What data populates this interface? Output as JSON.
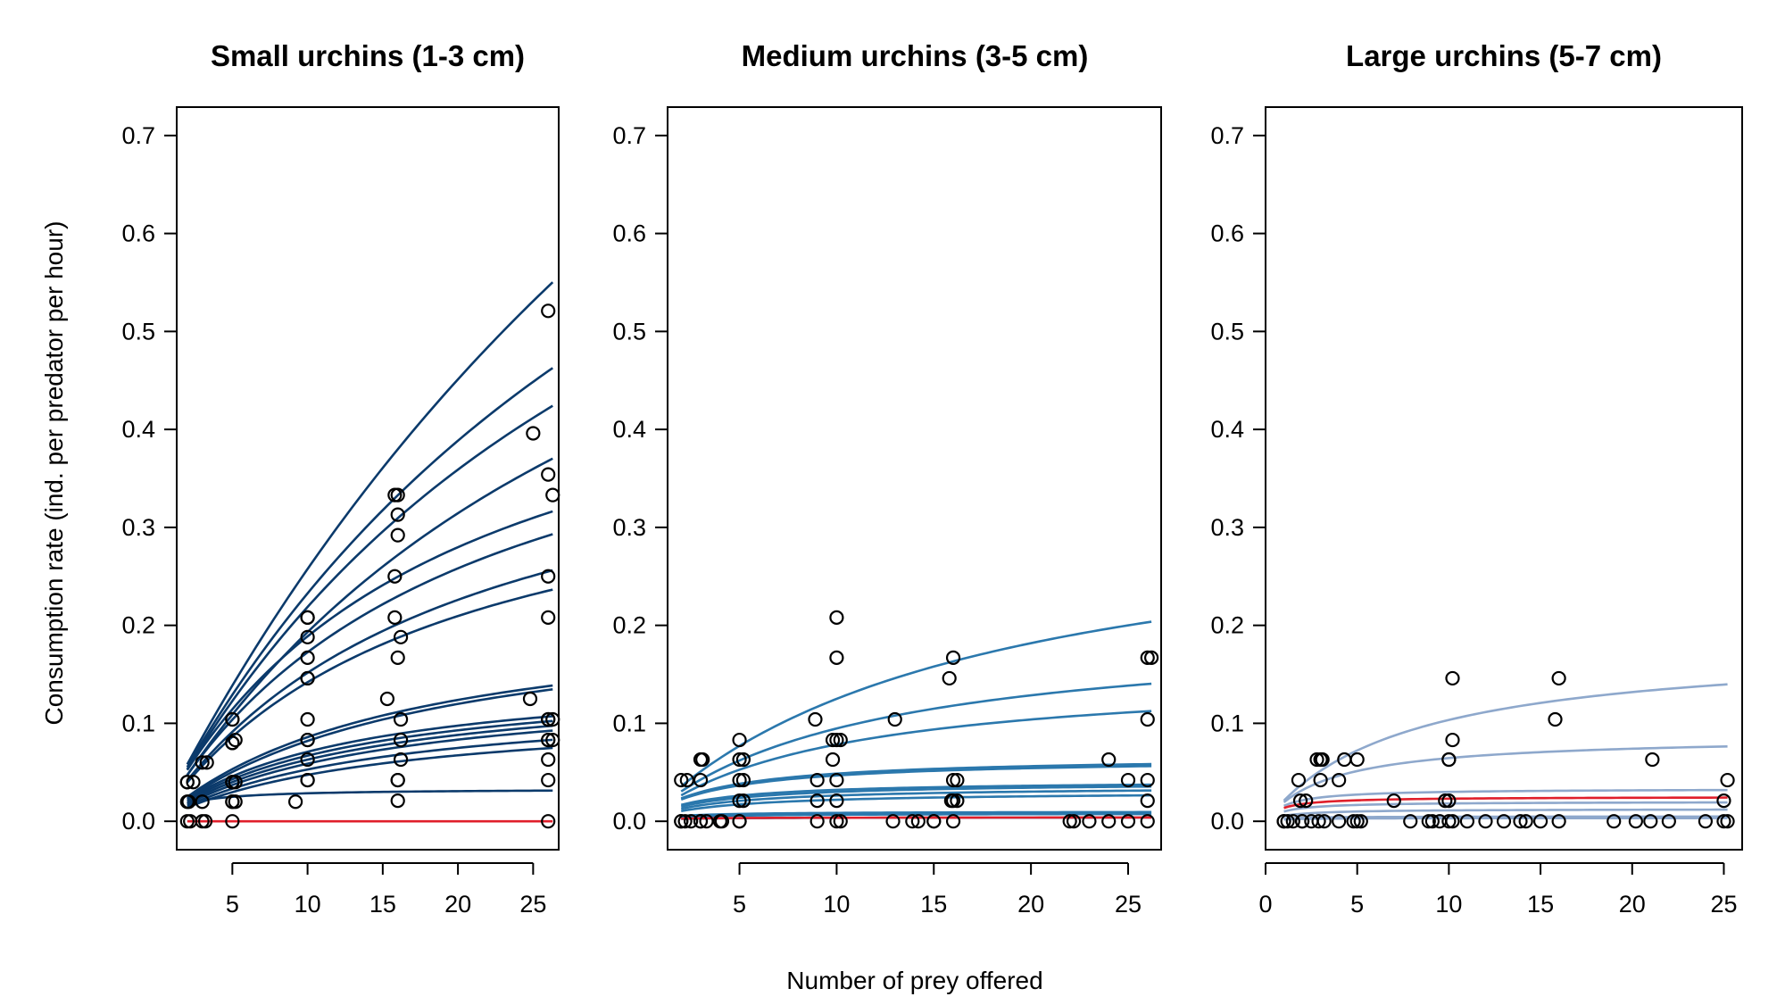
{
  "figure": {
    "xlabel": "Number of prey offered",
    "ylabel": "Consumption rate (ind. per predator per hour)"
  },
  "chart_data": [
    {
      "type": "scatter",
      "title": "Small urchins (1-3 cm)",
      "xlim": [
        1.3,
        26.7
      ],
      "ylim": [
        -0.029,
        0.729
      ],
      "xticks": [
        5,
        10,
        15,
        20,
        25
      ],
      "yticks": [
        0.0,
        0.1,
        0.2,
        0.3,
        0.4,
        0.5,
        0.6,
        0.7
      ],
      "line_color": "#0b3a6b",
      "highlight_color": "#e01f2b",
      "points": [
        [
          2,
          0
        ],
        [
          2,
          0.02
        ],
        [
          2,
          0.04
        ],
        [
          2,
          0.04
        ],
        [
          2.1,
          0.02
        ],
        [
          2.2,
          0
        ],
        [
          2.4,
          0.04
        ],
        [
          3,
          0
        ],
        [
          3,
          0.02
        ],
        [
          3,
          0.06
        ],
        [
          3.2,
          0
        ],
        [
          3.3,
          0.06
        ],
        [
          5,
          0
        ],
        [
          5,
          0.02
        ],
        [
          5,
          0.02
        ],
        [
          5,
          0.04
        ],
        [
          5,
          0.04
        ],
        [
          5,
          0.08
        ],
        [
          5,
          0.08
        ],
        [
          5,
          0.104
        ],
        [
          5,
          0.104
        ],
        [
          5.2,
          0.02
        ],
        [
          5.2,
          0.04
        ],
        [
          5.2,
          0.083
        ],
        [
          9.2,
          0.02
        ],
        [
          10,
          0.042
        ],
        [
          10,
          0.042
        ],
        [
          10,
          0.063
        ],
        [
          10,
          0.083
        ],
        [
          10,
          0.083
        ],
        [
          10,
          0.104
        ],
        [
          10,
          0.146
        ],
        [
          10,
          0.146
        ],
        [
          10,
          0.167
        ],
        [
          10,
          0.188
        ],
        [
          10,
          0.208
        ],
        [
          10,
          0.208
        ],
        [
          15.3,
          0.125
        ],
        [
          15.8,
          0.208
        ],
        [
          15.8,
          0.25
        ],
        [
          15.8,
          0.333
        ],
        [
          16,
          0.021
        ],
        [
          16,
          0.042
        ],
        [
          16,
          0.042
        ],
        [
          16,
          0.167
        ],
        [
          16,
          0.292
        ],
        [
          16,
          0.313
        ],
        [
          16,
          0.333
        ],
        [
          16.2,
          0.063
        ],
        [
          16.2,
          0.083
        ],
        [
          16.2,
          0.104
        ],
        [
          16.2,
          0.188
        ],
        [
          24.8,
          0.125
        ],
        [
          25,
          0.396
        ],
        [
          26,
          0
        ],
        [
          26,
          0.042
        ],
        [
          26,
          0.063
        ],
        [
          26,
          0.083
        ],
        [
          26,
          0.083
        ],
        [
          26,
          0.104
        ],
        [
          26,
          0.104
        ],
        [
          26,
          0.208
        ],
        [
          26,
          0.25
        ],
        [
          26,
          0.354
        ],
        [
          26,
          0.521
        ],
        [
          26.3,
          0.083
        ],
        [
          26.3,
          0.104
        ],
        [
          26.3,
          0.333
        ]
      ],
      "curves": [
        {
          "a": 0.03,
          "h": 0.55,
          "color": "#0b3a6b"
        },
        {
          "a": 0.029,
          "h": 0.85,
          "color": "#0b3a6b"
        },
        {
          "a": 0.028,
          "h": 1.0,
          "color": "#0b3a6b"
        },
        {
          "a": 0.025,
          "h": 1.18,
          "color": "#0b3a6b"
        },
        {
          "a": 0.029,
          "h": 1.85,
          "color": "#0b3a6b"
        },
        {
          "a": 0.026,
          "h": 1.95,
          "color": "#0b3a6b"
        },
        {
          "a": 0.023,
          "h": 2.25,
          "color": "#0b3a6b"
        },
        {
          "a": 0.022,
          "h": 2.5,
          "color": "#0b3a6b"
        },
        {
          "a": 0.014,
          "h": 4.5,
          "color": "#0b3a6b"
        },
        {
          "a": 0.013,
          "h": 4.5,
          "color": "#0b3a6b"
        },
        {
          "a": 0.013,
          "h": 6.4,
          "color": "#0b3a6b"
        },
        {
          "a": 0.012,
          "h": 6.6,
          "color": "#0b3a6b"
        },
        {
          "a": 0.011,
          "h": 6.8,
          "color": "#0b3a6b"
        },
        {
          "a": 0.01,
          "h": 7.0,
          "color": "#0b3a6b"
        },
        {
          "a": 0.009,
          "h": 7.8,
          "color": "#0b3a6b"
        },
        {
          "a": 0.008,
          "h": 8.6,
          "color": "#0b3a6b"
        },
        {
          "a": 0.02,
          "h": 30.0,
          "color": "#0b3a6b"
        },
        {
          "a": 0.0,
          "h": 1.0,
          "color": "#e01f2b"
        }
      ]
    },
    {
      "type": "scatter",
      "title": "Medium urchins (3-5 cm)",
      "xlim": [
        1.3,
        26.7
      ],
      "ylim": [
        -0.029,
        0.729
      ],
      "xticks": [
        5,
        10,
        15,
        20,
        25
      ],
      "yticks": [
        0.0,
        0.1,
        0.2,
        0.3,
        0.4,
        0.5,
        0.6,
        0.7
      ],
      "line_color": "#2b78ad",
      "highlight_color": "#e01f2b",
      "points": [
        [
          2,
          0
        ],
        [
          2,
          0
        ],
        [
          2,
          0.042
        ],
        [
          2.2,
          0
        ],
        [
          2.3,
          0.042
        ],
        [
          2.5,
          0
        ],
        [
          3,
          0
        ],
        [
          3,
          0
        ],
        [
          3,
          0.042
        ],
        [
          3,
          0.063
        ],
        [
          3.1,
          0.063
        ],
        [
          3.3,
          0
        ],
        [
          4,
          0
        ],
        [
          4.1,
          0
        ],
        [
          5,
          0
        ],
        [
          5,
          0
        ],
        [
          5,
          0.021
        ],
        [
          5,
          0.042
        ],
        [
          5,
          0.063
        ],
        [
          5,
          0.083
        ],
        [
          5.2,
          0.021
        ],
        [
          5.2,
          0.042
        ],
        [
          5.2,
          0.063
        ],
        [
          8.9,
          0.104
        ],
        [
          9,
          0
        ],
        [
          9,
          0.021
        ],
        [
          9,
          0.042
        ],
        [
          9.8,
          0.063
        ],
        [
          9.8,
          0.083
        ],
        [
          10,
          0
        ],
        [
          10,
          0.021
        ],
        [
          10,
          0.042
        ],
        [
          10,
          0.083
        ],
        [
          10,
          0.167
        ],
        [
          10,
          0.208
        ],
        [
          10.2,
          0
        ],
        [
          10.2,
          0.083
        ],
        [
          12.9,
          0
        ],
        [
          13,
          0.104
        ],
        [
          13.9,
          0
        ],
        [
          14.2,
          0
        ],
        [
          15,
          0
        ],
        [
          15,
          0
        ],
        [
          15.8,
          0.146
        ],
        [
          15.9,
          0.021
        ],
        [
          16,
          0
        ],
        [
          16,
          0.021
        ],
        [
          16,
          0.042
        ],
        [
          16,
          0.167
        ],
        [
          16.2,
          0.021
        ],
        [
          16.2,
          0.042
        ],
        [
          22,
          0
        ],
        [
          22.2,
          0
        ],
        [
          23,
          0
        ],
        [
          24,
          0.063
        ],
        [
          24,
          0
        ],
        [
          25,
          0
        ],
        [
          25,
          0.042
        ],
        [
          26,
          0
        ],
        [
          26,
          0.021
        ],
        [
          26,
          0.042
        ],
        [
          26,
          0.104
        ],
        [
          26,
          0.167
        ],
        [
          26.2,
          0.167
        ]
      ],
      "curves": [
        {
          "a": 0.02,
          "h": 3.0,
          "color": "#2b78ad"
        },
        {
          "a": 0.018,
          "h": 5.0,
          "color": "#2b78ad"
        },
        {
          "a": 0.016,
          "h": 6.5,
          "color": "#2b78ad"
        },
        {
          "a": 0.018,
          "h": 15.0,
          "color": "#2b78ad"
        },
        {
          "a": 0.017,
          "h": 15.5,
          "color": "#2b78ad"
        },
        {
          "a": 0.014,
          "h": 24.0,
          "color": "#2b78ad"
        },
        {
          "a": 0.012,
          "h": 25.0,
          "color": "#2b78ad"
        },
        {
          "a": 0.01,
          "h": 28.0,
          "color": "#2b78ad"
        },
        {
          "a": 0.008,
          "h": 33.0,
          "color": "#2b78ad"
        },
        {
          "a": 0.006,
          "h": 100.0,
          "color": "#2b78ad"
        },
        {
          "a": 0.004,
          "h": 125.0,
          "color": "#2b78ad"
        },
        {
          "a": 0.003,
          "h": 250.0,
          "color": "#2b78ad"
        },
        {
          "a": 0.004,
          "h": 250.0,
          "color": "#e01f2b"
        }
      ]
    },
    {
      "type": "scatter",
      "title": "Large urchins (5-7 cm)",
      "xlim": [
        0,
        26
      ],
      "ylim": [
        -0.029,
        0.729
      ],
      "xticks": [
        0,
        5,
        10,
        15,
        20,
        25
      ],
      "yticks": [
        0.0,
        0.1,
        0.2,
        0.3,
        0.4,
        0.5,
        0.6,
        0.7
      ],
      "line_color": "#8ea8cc",
      "highlight_color": "#e01f2b",
      "points": [
        [
          1,
          0
        ],
        [
          1,
          0
        ],
        [
          1.2,
          0
        ],
        [
          1.5,
          0
        ],
        [
          1.8,
          0.042
        ],
        [
          1.9,
          0.021
        ],
        [
          2,
          0
        ],
        [
          2,
          0
        ],
        [
          2.2,
          0.021
        ],
        [
          2.5,
          0
        ],
        [
          2.8,
          0.063
        ],
        [
          2.9,
          0
        ],
        [
          3,
          0.042
        ],
        [
          3,
          0.063
        ],
        [
          3.1,
          0.063
        ],
        [
          3.2,
          0
        ],
        [
          4,
          0.042
        ],
        [
          4,
          0
        ],
        [
          4.3,
          0.063
        ],
        [
          4.8,
          0
        ],
        [
          5,
          0.063
        ],
        [
          5,
          0
        ],
        [
          5.2,
          0
        ],
        [
          7,
          0.021
        ],
        [
          7.9,
          0
        ],
        [
          8.9,
          0
        ],
        [
          9.1,
          0
        ],
        [
          9.5,
          0
        ],
        [
          9.8,
          0.021
        ],
        [
          10,
          0.021
        ],
        [
          10,
          0.063
        ],
        [
          10,
          0.063
        ],
        [
          10,
          0
        ],
        [
          10.2,
          0.146
        ],
        [
          10.2,
          0.083
        ],
        [
          10.2,
          0
        ],
        [
          11,
          0
        ],
        [
          12,
          0
        ],
        [
          13,
          0
        ],
        [
          13.9,
          0
        ],
        [
          14.2,
          0
        ],
        [
          15,
          0
        ],
        [
          15.8,
          0.104
        ],
        [
          16,
          0
        ],
        [
          16,
          0.146
        ],
        [
          19,
          0
        ],
        [
          20.2,
          0
        ],
        [
          21,
          0
        ],
        [
          21.1,
          0.063
        ],
        [
          22,
          0
        ],
        [
          24,
          0
        ],
        [
          25,
          0
        ],
        [
          25,
          0.021
        ],
        [
          25.2,
          0.042
        ],
        [
          25.2,
          0
        ]
      ],
      "curves": [
        {
          "a": 0.024,
          "h": 5.5,
          "color": "#8ea8cc"
        },
        {
          "a": 0.025,
          "h": 11.5,
          "color": "#8ea8cc"
        },
        {
          "a": 0.03,
          "h": 30.0,
          "color": "#8ea8cc"
        },
        {
          "a": 0.03,
          "h": 40.0,
          "color": "#e01f2b"
        },
        {
          "a": 0.02,
          "h": 50.0,
          "color": "#8ea8cc"
        },
        {
          "a": 0.01,
          "h": 80.0,
          "color": "#8ea8cc"
        },
        {
          "a": 0.006,
          "h": 200.0,
          "color": "#8ea8cc"
        },
        {
          "a": 0.004,
          "h": 300.0,
          "color": "#8ea8cc"
        }
      ]
    }
  ]
}
